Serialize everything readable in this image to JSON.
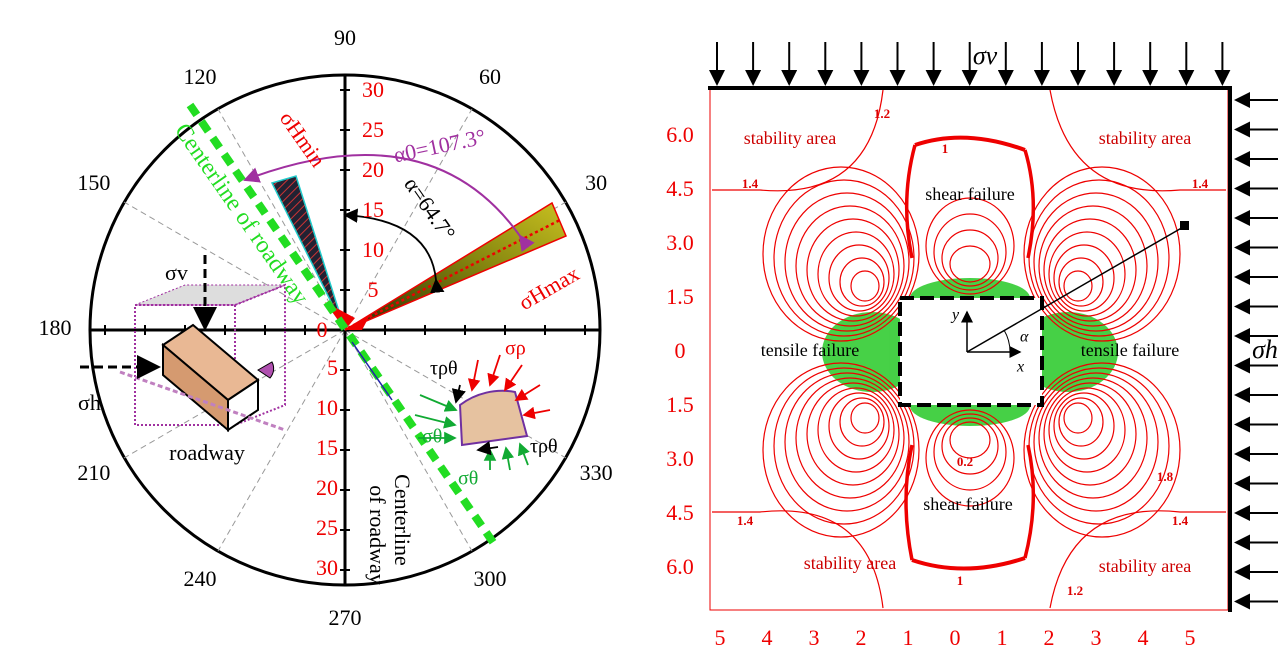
{
  "left": {
    "angle_labels": [
      "30",
      "60",
      "90",
      "120",
      "150",
      "180",
      "210",
      "240",
      "270",
      "300",
      "330"
    ],
    "radial_labels_up": [
      "0",
      "5",
      "10",
      "15",
      "20",
      "25",
      "30"
    ],
    "radial_labels_down": [
      "5",
      "10",
      "15",
      "20",
      "25",
      "30"
    ],
    "sigma_h_min": "σHmin",
    "sigma_h_max": "σHmax",
    "alpha0": "α0=107.3°",
    "alpha": "α=64.7°",
    "centerline_diag": "Centerline of roadway",
    "centerline_vert": [
      "Centerline",
      "of roadway"
    ],
    "sigma_v": "σv",
    "sigma_h": "σh",
    "roadway": "roadway",
    "tau_1": "τρθ",
    "tau_2": "τρθ",
    "sigma_rho": "σρ",
    "sigma_theta_1": "σθ",
    "sigma_theta_2": "σθ"
  },
  "right": {
    "y_labels": [
      "6.0",
      "4.5",
      "3.0",
      "1.5",
      "0",
      "1.5",
      "3.0",
      "4.5",
      "6.0"
    ],
    "x_labels": [
      "5",
      "4",
      "3",
      "2",
      "1",
      "0",
      "1",
      "2",
      "3",
      "4",
      "5"
    ],
    "sigma_v": "σv",
    "sigma_h": "σh",
    "stability_areas": [
      "stability area",
      "stability area",
      "stability area",
      "stability area"
    ],
    "shear_failures": [
      "shear failure",
      "shear failure"
    ],
    "tensile_failures": [
      "tensile failure",
      "tensile failure"
    ],
    "contour_labels": [
      "1.2",
      "1",
      "1.4",
      "1.4",
      "0.2",
      "1.8",
      "1.4",
      "1.4",
      "1",
      "1.2"
    ],
    "axis_x": "x",
    "axis_y": "y",
    "angle": "α"
  }
}
